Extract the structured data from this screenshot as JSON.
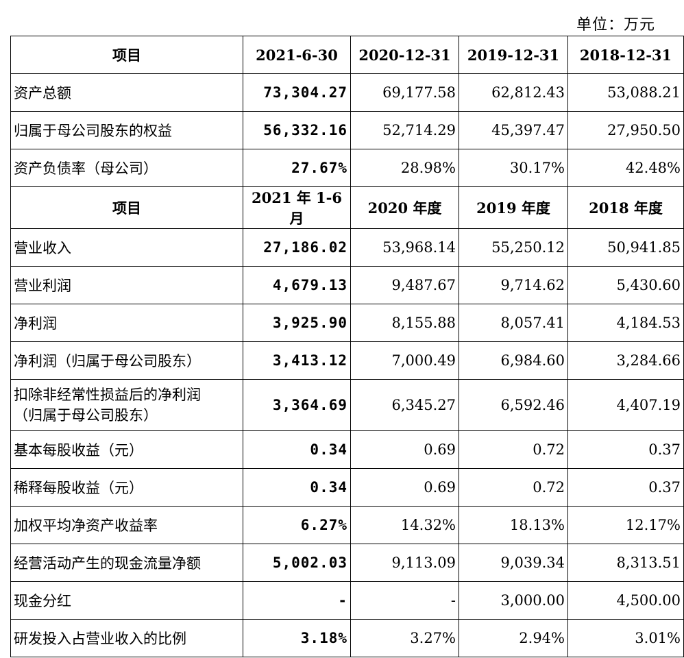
{
  "unit_label": "单位：万元",
  "section1": {
    "headers": [
      "项目",
      "2021-6-30",
      "2020-12-31",
      "2019-12-31",
      "2018-12-31"
    ],
    "rows": [
      {
        "label": "资产总额",
        "v": [
          "73,304.27",
          "69,177.58",
          "62,812.43",
          "53,088.21"
        ]
      },
      {
        "label": "归属于母公司股东的权益",
        "v": [
          "56,332.16",
          "52,714.29",
          "45,397.47",
          "27,950.50"
        ]
      },
      {
        "label": "资产负债率（母公司）",
        "v": [
          "27.67%",
          "28.98%",
          "30.17%",
          "42.48%"
        ]
      }
    ]
  },
  "section2": {
    "headers": [
      "项目",
      "2021 年 1-6 月",
      "2020 年度",
      "2019 年度",
      "2018 年度"
    ],
    "rows": [
      {
        "label": "营业收入",
        "v": [
          "27,186.02",
          "53,968.14",
          "55,250.12",
          "50,941.85"
        ]
      },
      {
        "label": "营业利润",
        "v": [
          "4,679.13",
          "9,487.67",
          "9,714.62",
          "5,430.60"
        ]
      },
      {
        "label": "净利润",
        "v": [
          "3,925.90",
          "8,155.88",
          "8,057.41",
          "4,184.53"
        ]
      },
      {
        "label": "净利润（归属于母公司股东）",
        "v": [
          "3,413.12",
          "7,000.49",
          "6,984.60",
          "3,284.66"
        ]
      },
      {
        "label": "扣除非经常性损益后的净利润",
        "label2": "（归属于母公司股东）",
        "v": [
          "3,364.69",
          "6,345.27",
          "6,592.46",
          "4,407.19"
        ]
      },
      {
        "label": "基本每股收益（元）",
        "v": [
          "0.34",
          "0.69",
          "0.72",
          "0.37"
        ]
      },
      {
        "label": "稀释每股收益（元）",
        "v": [
          "0.34",
          "0.69",
          "0.72",
          "0.37"
        ]
      },
      {
        "label": "加权平均净资产收益率",
        "v": [
          "6.27%",
          "14.32%",
          "18.13%",
          "12.17%"
        ]
      },
      {
        "label": "经营活动产生的现金流量净额",
        "v": [
          "5,002.03",
          "9,113.09",
          "9,039.34",
          "8,313.51"
        ]
      },
      {
        "label": "现金分红",
        "v": [
          "-",
          "-",
          "3,000.00",
          "4,500.00"
        ]
      },
      {
        "label": "研发投入占营业收入的比例",
        "v": [
          "3.18%",
          "3.27%",
          "2.94%",
          "3.01%"
        ]
      }
    ]
  }
}
